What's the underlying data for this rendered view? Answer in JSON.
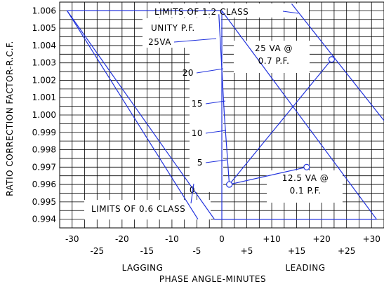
{
  "chart_data": {
    "type": "line",
    "xlabel": "PHASE ANGLE-MINUTES",
    "ylabel": "RATIO CORRECTION FACTOR-R.C.F.",
    "x_side_labels": {
      "left": "LAGGING",
      "right": "LEADING"
    },
    "xlim": [
      -32.5,
      32.5
    ],
    "ylim": [
      0.9935,
      1.0065
    ],
    "grid": true,
    "x_ticks_major": [
      "-30",
      "-20",
      "-10",
      "0",
      "+10",
      "+20",
      "+30"
    ],
    "x_ticks_minor": [
      "-25",
      "-15",
      "-5",
      "+5",
      "+15",
      "+25"
    ],
    "y_ticks": [
      "1.006",
      "1.005",
      "1.004",
      "1.003",
      "1.002",
      "1.001",
      "1.000",
      "0.999",
      "0.998",
      "0.997",
      "0.996",
      "0.995",
      "0.994"
    ],
    "limit_0_6_class": {
      "label": "LIMITS OF 0.6 CLASS",
      "points": [
        [
          -31,
          1.006
        ],
        [
          0,
          1.006
        ],
        [
          0,
          0.994
        ],
        [
          31,
          0.994
        ],
        [
          0,
          1.006
        ]
      ]
    },
    "limit_1_2_class": {
      "label": "LIMITS OF 1.2 CLASS",
      "points": [
        [
          -30,
          0.994
        ],
        [
          0,
          0.994
        ]
      ]
    },
    "unity_pf_curve": {
      "label": "UNITY P.F.",
      "points": [
        [
          1.5,
          0.996
        ],
        [
          0.5,
          1.0035
        ],
        [
          -0.5,
          1.0058
        ]
      ],
      "burden_labels": [
        "0",
        "5",
        "10",
        "15",
        "20",
        "25VA"
      ],
      "burden_values": [
        [
          1.5,
          0.996
        ],
        [
          1.3,
          0.9969
        ],
        [
          1.0,
          0.9978
        ],
        [
          0.7,
          0.9988
        ],
        [
          0.3,
          1.0025
        ],
        [
          -0.3,
          1.0053
        ]
      ]
    },
    "points": [
      {
        "label": "12.5 VA @ 0.1 P.F.",
        "x": 17,
        "y": 0.997
      },
      {
        "label": "25 VA @ 0.7 P.F.",
        "x": 22,
        "y": 1.0032
      }
    ],
    "origin_point": {
      "x": 1.5,
      "y": 0.996
    }
  }
}
